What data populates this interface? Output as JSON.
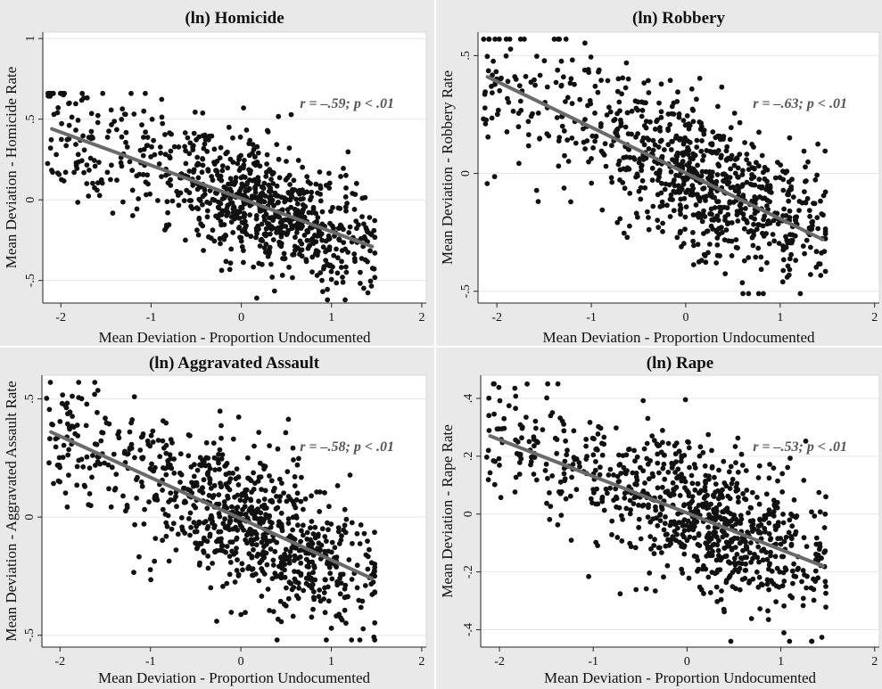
{
  "chart_data": [
    {
      "type": "scatter",
      "panel_id": "homicide",
      "title": "(ln) Homicide",
      "xlabel": "Mean Deviation - Proportion Undocumented",
      "ylabel": "Mean Deviation - Homicide Rate",
      "xlim": [
        -2.2,
        2.05
      ],
      "ylim": [
        -0.64,
        1.04
      ],
      "xticks": [
        -2,
        -1,
        0,
        1,
        2
      ],
      "xtick_labels": [
        "-2",
        "-1",
        "0",
        "1",
        "2"
      ],
      "yticks": [
        -0.5,
        0,
        0.5,
        1
      ],
      "ytick_labels": [
        "-.5",
        "0",
        ".5",
        "1"
      ],
      "annotation": "r = –.59; p < .01",
      "fit_line": {
        "x1": -2.1,
        "y1": 0.44,
        "x2": 1.45,
        "y2": -0.29
      },
      "n_points": 860,
      "seed": 11,
      "noise_sd": 0.19,
      "points_x_range": [
        -2.15,
        1.48
      ],
      "points_y_clip": [
        -0.62,
        0.66
      ],
      "grid": true
    },
    {
      "type": "scatter",
      "panel_id": "robbery",
      "title": "(ln) Robbery",
      "xlabel": "Mean Deviation - Proportion Undocumented",
      "ylabel": "Mean Deviation - Robbery Rate",
      "xlim": [
        -2.2,
        2.05
      ],
      "ylim": [
        -0.55,
        0.6
      ],
      "xticks": [
        -2,
        -1,
        0,
        1,
        2
      ],
      "xtick_labels": [
        "-2",
        "-1",
        "0",
        "1",
        "2"
      ],
      "yticks": [
        -0.5,
        0,
        0.5
      ],
      "ytick_labels": [
        "-.5",
        "0",
        ".5"
      ],
      "annotation": "r = –.63; p < .01",
      "fit_line": {
        "x1": -2.1,
        "y1": 0.41,
        "x2": 1.45,
        "y2": -0.28
      },
      "n_points": 860,
      "seed": 23,
      "noise_sd": 0.16,
      "points_x_range": [
        -2.15,
        1.48
      ],
      "points_y_clip": [
        -0.51,
        0.57
      ],
      "grid": true
    },
    {
      "type": "scatter",
      "panel_id": "assault",
      "title": "(ln) Aggravated Assault",
      "xlabel": "Mean Deviation - Proportion Undocumented",
      "ylabel": "Mean Deviation - Aggravated Assault Rate",
      "xlim": [
        -2.2,
        2.05
      ],
      "ylim": [
        -0.55,
        0.6
      ],
      "xticks": [
        -2,
        -1,
        0,
        1,
        2
      ],
      "xtick_labels": [
        "-2",
        "-1",
        "0",
        "1",
        "2"
      ],
      "yticks": [
        -0.5,
        0,
        0.5
      ],
      "ytick_labels": [
        "-.5",
        "0",
        ".5"
      ],
      "annotation": "r = –.58; p < .01",
      "fit_line": {
        "x1": -2.1,
        "y1": 0.36,
        "x2": 1.45,
        "y2": -0.26
      },
      "n_points": 860,
      "seed": 37,
      "noise_sd": 0.15,
      "points_x_range": [
        -2.15,
        1.48
      ],
      "points_y_clip": [
        -0.52,
        0.57
      ],
      "grid": true
    },
    {
      "type": "scatter",
      "panel_id": "rape",
      "title": "(ln) Rape",
      "xlabel": "Mean Deviation - Proportion Undocumented",
      "ylabel": "Mean Deviation - Rape Rate",
      "xlim": [
        -2.2,
        2.05
      ],
      "ylim": [
        -0.46,
        0.48
      ],
      "xticks": [
        -2,
        -1,
        0,
        1,
        2
      ],
      "xtick_labels": [
        "-2",
        "-1",
        "0",
        "1",
        "2"
      ],
      "yticks": [
        -0.4,
        -0.2,
        0,
        0.2,
        0.4
      ],
      "ytick_labels": [
        "-.4",
        "-.2",
        "0",
        ".2",
        ".4"
      ],
      "annotation": "r = –.53; p < .01",
      "fit_line": {
        "x1": -2.1,
        "y1": 0.27,
        "x2": 1.45,
        "y2": -0.18
      },
      "n_points": 860,
      "seed": 53,
      "noise_sd": 0.12,
      "points_x_range": [
        -2.15,
        1.48
      ],
      "points_y_clip": [
        -0.44,
        0.45
      ],
      "grid": true
    }
  ],
  "colors": {
    "panel_background": "#e9e9e9",
    "plot_background": "#ffffff",
    "points": "#111111",
    "fit_line": "#6a6a6a",
    "annotation": "#555555"
  }
}
